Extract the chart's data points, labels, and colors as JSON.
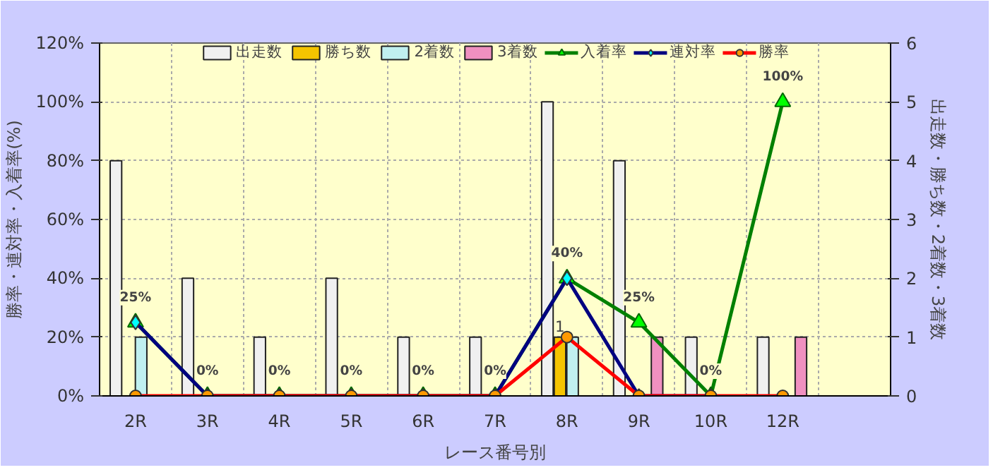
{
  "chart_data": {
    "type": "bar",
    "categories": [
      "2R",
      "3R",
      "4R",
      "5R",
      "6R",
      "7R",
      "8R",
      "9R",
      "10R",
      "12R",
      null
    ],
    "xlabel": "レース番号別",
    "ylabel": "勝率・連対率・入着率(%)",
    "y2label": "出走数・勝ち数・2着数・3着数",
    "ylim": [
      0,
      120
    ],
    "yticks": [
      {
        "value": 0,
        "label": "0%"
      },
      {
        "value": 20,
        "label": "20%"
      },
      {
        "value": 40,
        "label": "40%"
      },
      {
        "value": 60,
        "label": "60%"
      },
      {
        "value": 80,
        "label": "80%"
      },
      {
        "value": 100,
        "label": "100%"
      },
      {
        "value": 120,
        "label": "120%"
      }
    ],
    "y2lim": [
      0,
      6
    ],
    "y2ticks": [
      0,
      1,
      2,
      3,
      4,
      5,
      6
    ],
    "grid": true,
    "legend": "top",
    "series": [
      {
        "name": "出走数",
        "axis": "y2",
        "color": "#f0f0f0",
        "values": [
          4,
          2,
          1,
          2,
          1,
          1,
          5,
          4,
          1,
          1,
          null
        ]
      },
      {
        "name": "勝ち数",
        "axis": "y2",
        "color": "#f5c400",
        "values": [
          null,
          null,
          null,
          null,
          null,
          null,
          1,
          null,
          null,
          null,
          null
        ],
        "value_labels": [
          null,
          null,
          null,
          null,
          null,
          null,
          "1",
          null,
          null,
          null,
          null
        ]
      },
      {
        "name": "2着数",
        "axis": "y2",
        "color": "#c0f0f0",
        "values": [
          1,
          null,
          null,
          null,
          null,
          null,
          1,
          null,
          null,
          null,
          null
        ]
      },
      {
        "name": "3着数",
        "axis": "y2",
        "color": "#f090c0",
        "values": [
          null,
          null,
          null,
          null,
          null,
          null,
          null,
          1,
          null,
          1,
          null
        ]
      },
      {
        "name": "入着率",
        "type": "line",
        "color": "#008000",
        "marker": "triangle",
        "values": [
          25,
          0,
          0,
          0,
          0,
          0,
          40,
          25,
          0,
          100,
          null
        ],
        "value_labels": [
          "25%",
          "0%",
          "0%",
          "0%",
          "0%",
          "0%",
          "40%",
          "25%",
          "0%",
          "100%",
          null
        ]
      },
      {
        "name": "連対率",
        "type": "line",
        "color": "#000080",
        "marker": "diamond",
        "values": [
          25,
          0,
          0,
          0,
          0,
          0,
          40,
          0,
          0,
          null,
          null
        ]
      },
      {
        "name": "勝率",
        "type": "line",
        "color": "#ff0000",
        "marker": "circle",
        "values": [
          0,
          0,
          0,
          0,
          0,
          0,
          20,
          0,
          0,
          0,
          null
        ]
      }
    ]
  }
}
